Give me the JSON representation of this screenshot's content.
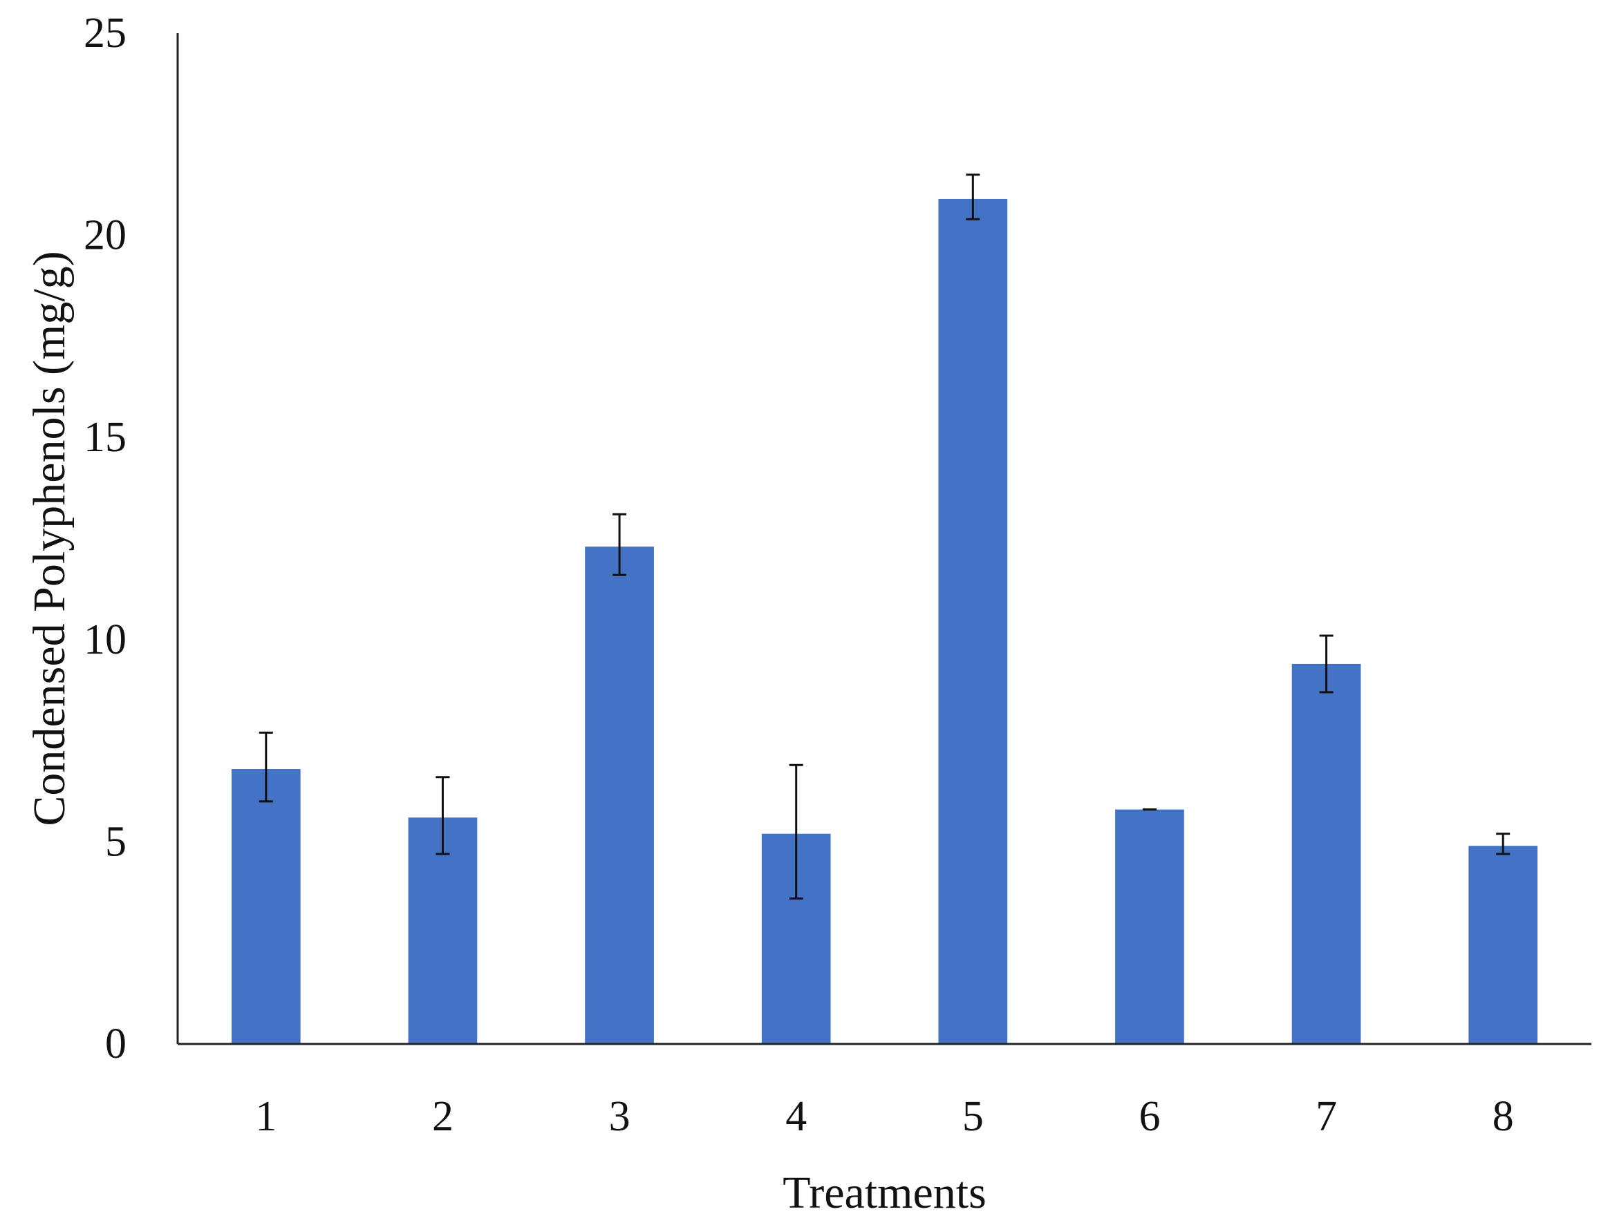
{
  "chart_data": {
    "type": "bar",
    "title": "",
    "xlabel": "Treatments",
    "ylabel": "Condensed Polyphenols (mg/g)",
    "categories": [
      "1",
      "2",
      "3",
      "4",
      "5",
      "6",
      "7",
      "8"
    ],
    "values": [
      6.8,
      5.6,
      12.3,
      5.2,
      20.9,
      5.8,
      9.4,
      4.9
    ],
    "error_lower": [
      6.0,
      4.7,
      11.6,
      3.6,
      20.4,
      5.8,
      8.7,
      4.7
    ],
    "error_upper": [
      7.7,
      6.6,
      13.1,
      6.9,
      21.5,
      5.8,
      10.1,
      5.2
    ],
    "ylim": [
      0,
      25
    ],
    "yticks": [
      0,
      5,
      10,
      15,
      20,
      25
    ],
    "grid": false,
    "legend": "none",
    "bar_color": "#4472C4"
  }
}
